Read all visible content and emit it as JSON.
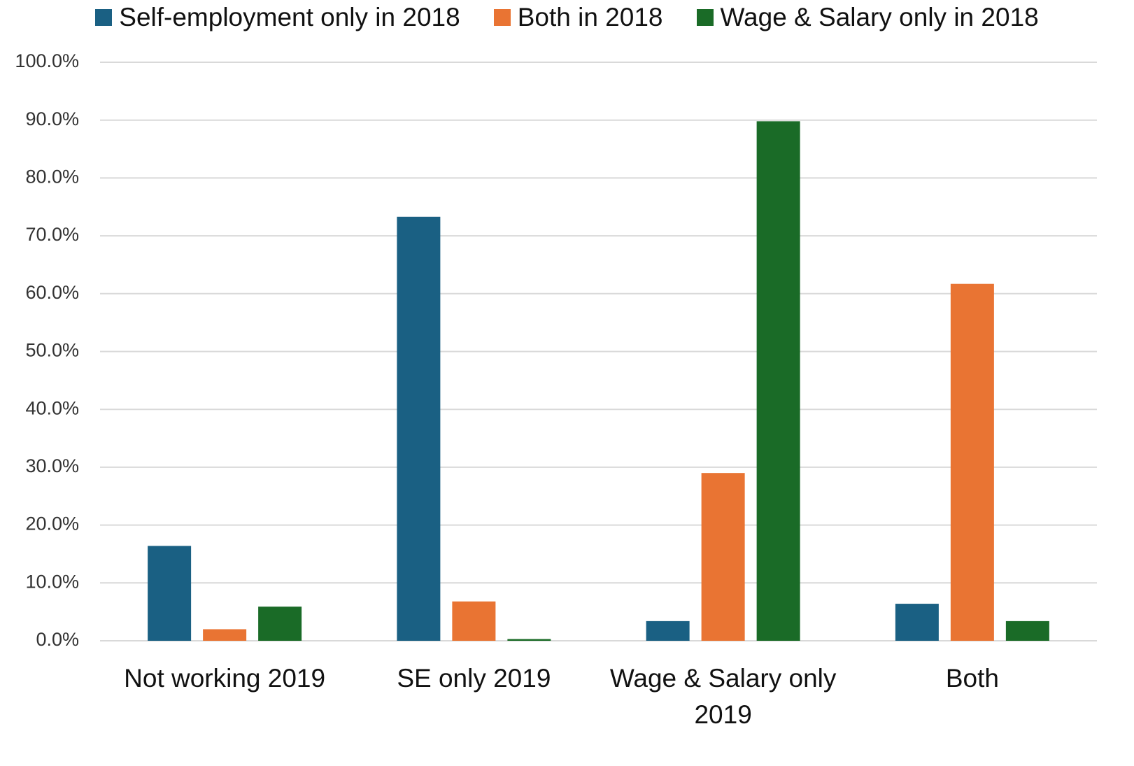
{
  "chart_data": {
    "type": "bar",
    "categories": [
      "Not working 2019",
      "SE only 2019",
      "Wage & Salary only 2019",
      "Both"
    ],
    "series": [
      {
        "name": "Self-employment only in 2018",
        "color": "#1a6083",
        "values": [
          16.4,
          73.3,
          3.4,
          6.4
        ]
      },
      {
        "name": "Both in 2018",
        "color": "#e97433",
        "values": [
          2.0,
          6.8,
          29.0,
          61.7
        ]
      },
      {
        "name": "Wage & Salary only in 2018",
        "color": "#1a6b27",
        "values": [
          5.9,
          0.3,
          89.8,
          3.4
        ]
      }
    ],
    "ylim": [
      0,
      100
    ],
    "yticks": [
      {
        "value": 0,
        "label": "0.0%"
      },
      {
        "value": 10,
        "label": "10.0%"
      },
      {
        "value": 20,
        "label": "20.0%"
      },
      {
        "value": 30,
        "label": "30.0%"
      },
      {
        "value": 40,
        "label": "40.0%"
      },
      {
        "value": 50,
        "label": "50.0%"
      },
      {
        "value": 60,
        "label": "60.0%"
      },
      {
        "value": 70,
        "label": "70.0%"
      },
      {
        "value": 80,
        "label": "80.0%"
      },
      {
        "value": 90,
        "label": "90.0%"
      },
      {
        "value": 100,
        "label": "100.0%"
      }
    ],
    "grid": true,
    "legend": "top"
  }
}
